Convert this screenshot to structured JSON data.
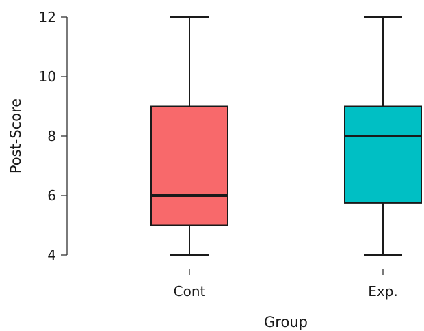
{
  "chart_data": {
    "type": "boxplot",
    "xlabel": "Group",
    "ylabel": "Post-Score",
    "ylim": [
      4,
      12
    ],
    "yticks": [
      4,
      6,
      8,
      10,
      12
    ],
    "grid": false,
    "legend": "none",
    "categories": [
      "Cont",
      "Exp."
    ],
    "boxes": [
      {
        "category": "Cont",
        "min": 4,
        "q1": 5,
        "median": 6,
        "q3": 9,
        "max": 12,
        "color": "#f8696b"
      },
      {
        "category": "Exp.",
        "min": 4,
        "q1": 5.75,
        "median": 8,
        "q3": 9,
        "max": 12,
        "color": "#00bfc4"
      }
    ]
  }
}
